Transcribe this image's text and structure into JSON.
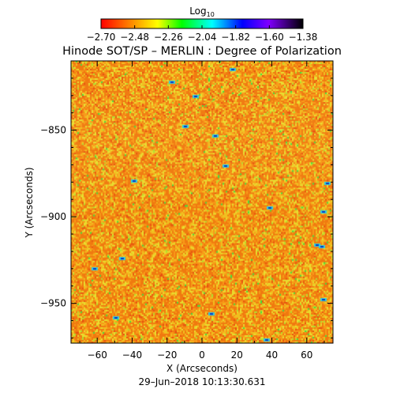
{
  "chart_data": {
    "type": "heatmap",
    "title": "Hinode SOT/SP – MERLIN : Degree of Polarization",
    "xlabel": "X (Arcseconds)",
    "ylabel": "Y (Arcseconds)",
    "xlim": [
      -75,
      75
    ],
    "ylim": [
      -973,
      -810
    ],
    "x_ticks": [
      -60,
      -40,
      -20,
      0,
      20,
      40,
      60
    ],
    "x_tick_labels": [
      "−60",
      "−40",
      "−20",
      "0",
      "20",
      "40",
      "60"
    ],
    "y_ticks": [
      -850,
      -900,
      -950
    ],
    "y_tick_labels": [
      "−850",
      "−900",
      "−950"
    ],
    "colorbar": {
      "label_base": "Log",
      "label_sub": "10",
      "range": [
        -2.7,
        -1.38
      ],
      "ticks": [
        -2.7,
        -2.48,
        -2.26,
        -2.04,
        -1.82,
        -1.6,
        -1.38
      ],
      "tick_labels": [
        "−2.70",
        "−2.48",
        "−2.26",
        "−2.04",
        "−1.82",
        "−1.60",
        "−1.38"
      ]
    },
    "timestamp": "29–Jun–2018 10:13:30.631",
    "colors": {
      "background_orange": "#f08a10",
      "yellow": "#f0e030",
      "green": "#30e040",
      "cyan": "#10c8e8",
      "blue": "#1030d0"
    }
  }
}
